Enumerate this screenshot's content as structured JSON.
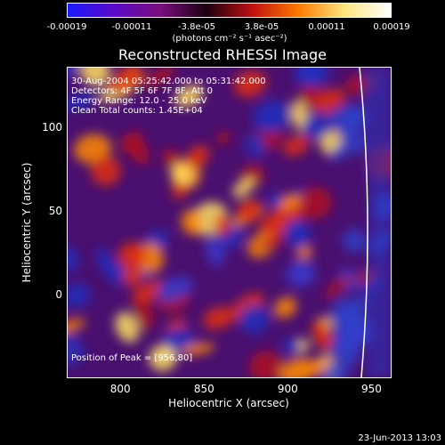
{
  "colorbar": {
    "ticks": [
      "-0.00019",
      "-0.00011",
      "-3.8e-05",
      "3.8e-05",
      "0.00011",
      "0.00019"
    ],
    "units": "(photons cm⁻² s⁻¹ asec⁻²)",
    "colors": [
      "#1a1aff",
      "#5a0ac8",
      "#7a0e7e",
      "#1a0010",
      "#c01010",
      "#ff7a00",
      "#ffe680",
      "#ffffff"
    ]
  },
  "info_lines": [
    "30-Aug-2004 05:25:42.000 to 05:31:42.000",
    "Detectors: 4F 5F 6F 7F 8F, Att 0",
    "Energy Range: 12.0 - 25.0 keV",
    "Clean      Total counts: 1.45E+04"
  ],
  "peak_text": "Position of Peak = [956,80]",
  "timestamp": "23-Jun-2013 13:03",
  "chart_data": {
    "type": "heatmap",
    "title": "Reconstructed RHESSI Image",
    "xlabel": "Heliocentric X (arcsec)",
    "ylabel": "Heliocentric Y (arcsec)",
    "xlim": [
      768,
      962
    ],
    "ylim": [
      -50,
      136
    ],
    "xticks": [
      "800",
      "850",
      "900",
      "950"
    ],
    "yticks": [
      "0",
      "50",
      "100"
    ],
    "zlim": [
      -0.00019,
      0.00019
    ],
    "peak": {
      "x": 956,
      "y": 80
    },
    "limb": true
  }
}
